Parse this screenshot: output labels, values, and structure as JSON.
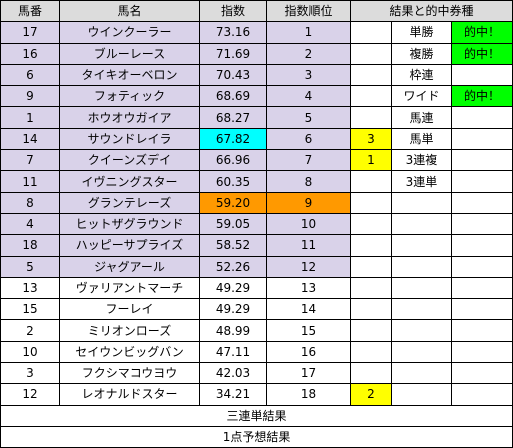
{
  "header": {
    "num": "馬番",
    "name": "馬名",
    "index": "指数",
    "rank": "指数順位",
    "result": "結果と的中券種"
  },
  "colors": {
    "lavender": "#d9d2e9",
    "cyan": "#00ffff",
    "orange": "#ff9900",
    "yellow": "#ffff00",
    "green": "#00ff00",
    "header_gray": "#dcdcdc"
  },
  "rows": [
    {
      "num": "17",
      "name": "ウインクーラー",
      "index": "73.16",
      "rank": "1",
      "mark": "",
      "ticket": "単勝",
      "hit": "的中！"
    },
    {
      "num": "16",
      "name": "ブルーレース",
      "index": "71.69",
      "rank": "2",
      "mark": "",
      "ticket": "複勝",
      "hit": "的中！"
    },
    {
      "num": "6",
      "name": "タイキオーベロン",
      "index": "70.43",
      "rank": "3",
      "mark": "",
      "ticket": "枠連",
      "hit": ""
    },
    {
      "num": "9",
      "name": "フォティック",
      "index": "68.69",
      "rank": "4",
      "mark": "",
      "ticket": "ワイド",
      "hit": "的中！"
    },
    {
      "num": "1",
      "name": "ホウオウガイア",
      "index": "68.27",
      "rank": "5",
      "mark": "",
      "ticket": "馬連",
      "hit": ""
    },
    {
      "num": "14",
      "name": "サウンドレイラ",
      "index": "67.82",
      "rank": "6",
      "mark": "3",
      "ticket": "馬単",
      "hit": ""
    },
    {
      "num": "7",
      "name": "クイーンズデイ",
      "index": "66.96",
      "rank": "7",
      "mark": "1",
      "ticket": "3連複",
      "hit": ""
    },
    {
      "num": "11",
      "name": "イヴニングスター",
      "index": "60.35",
      "rank": "8",
      "mark": "",
      "ticket": "3連単",
      "hit": ""
    },
    {
      "num": "8",
      "name": "グランテレーズ",
      "index": "59.20",
      "rank": "9",
      "mark": "",
      "ticket": "",
      "hit": ""
    },
    {
      "num": "4",
      "name": "ヒットザグラウンド",
      "index": "59.05",
      "rank": "10",
      "mark": "",
      "ticket": "",
      "hit": ""
    },
    {
      "num": "18",
      "name": "ハッピーサプライズ",
      "index": "58.52",
      "rank": "11",
      "mark": "",
      "ticket": "",
      "hit": ""
    },
    {
      "num": "5",
      "name": "ジャグアール",
      "index": "52.26",
      "rank": "12",
      "mark": "",
      "ticket": "",
      "hit": ""
    },
    {
      "num": "13",
      "name": "ヴァリアントマーチ",
      "index": "49.29",
      "rank": "13",
      "mark": "",
      "ticket": "",
      "hit": ""
    },
    {
      "num": "15",
      "name": "フーレイ",
      "index": "49.29",
      "rank": "14",
      "mark": "",
      "ticket": "",
      "hit": ""
    },
    {
      "num": "2",
      "name": "ミリオンローズ",
      "index": "48.99",
      "rank": "15",
      "mark": "",
      "ticket": "",
      "hit": ""
    },
    {
      "num": "10",
      "name": "セイウンビッグバン",
      "index": "47.11",
      "rank": "16",
      "mark": "",
      "ticket": "",
      "hit": ""
    },
    {
      "num": "3",
      "name": "フクシマコウヨウ",
      "index": "42.03",
      "rank": "17",
      "mark": "",
      "ticket": "",
      "hit": ""
    },
    {
      "num": "12",
      "name": "レオナルドスター",
      "index": "34.21",
      "rank": "18",
      "mark": "2",
      "ticket": "",
      "hit": ""
    }
  ],
  "footer": {
    "trifecta_result": "三連単結果",
    "single_prediction": "1点予想結果"
  }
}
